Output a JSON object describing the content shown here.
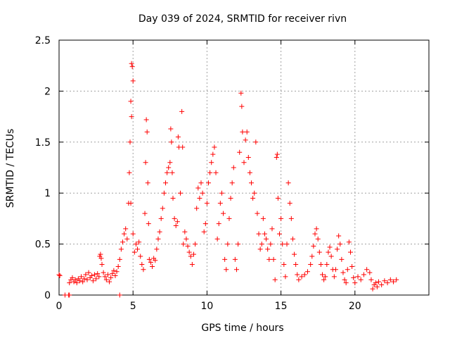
{
  "chart_data": {
    "type": "scatter",
    "title": "Day 039 of 2024, SRMTID for receiver rivn",
    "xlabel": "GPS time / hours",
    "ylabel": "SRMTID / TECUs",
    "xlim": [
      0,
      25
    ],
    "ylim": [
      0,
      2.5
    ],
    "xticks": [
      0,
      5,
      10,
      15,
      20
    ],
    "xtick_labels": [
      "0",
      "5",
      "10",
      "15",
      "20"
    ],
    "yticks": [
      0,
      0.5,
      1,
      1.5,
      2,
      2.5
    ],
    "ytick_labels": [
      "0",
      "0.5",
      "1",
      "1.5",
      "2",
      "2.5"
    ],
    "grid": true,
    "marker": "+",
    "color": "#ff0000",
    "series": [
      {
        "name": "SRMTID",
        "points": [
          [
            0.0,
            0.2
          ],
          [
            0.05,
            0.19
          ],
          [
            0.4,
            0.0
          ],
          [
            0.65,
            0.0
          ],
          [
            0.7,
            0.0
          ],
          [
            0.7,
            0.12
          ],
          [
            0.8,
            0.15
          ],
          [
            0.9,
            0.17
          ],
          [
            1.0,
            0.13
          ],
          [
            1.1,
            0.15
          ],
          [
            1.2,
            0.12
          ],
          [
            1.3,
            0.16
          ],
          [
            1.4,
            0.14
          ],
          [
            1.5,
            0.18
          ],
          [
            1.6,
            0.13
          ],
          [
            1.7,
            0.16
          ],
          [
            1.8,
            0.2
          ],
          [
            1.9,
            0.15
          ],
          [
            2.0,
            0.22
          ],
          [
            2.1,
            0.17
          ],
          [
            2.2,
            0.19
          ],
          [
            2.3,
            0.14
          ],
          [
            2.4,
            0.2
          ],
          [
            2.5,
            0.16
          ],
          [
            2.6,
            0.21
          ],
          [
            2.7,
            0.18
          ],
          [
            2.75,
            0.38
          ],
          [
            2.8,
            0.4
          ],
          [
            2.85,
            0.36
          ],
          [
            2.9,
            0.3
          ],
          [
            3.0,
            0.22
          ],
          [
            3.1,
            0.18
          ],
          [
            3.2,
            0.15
          ],
          [
            3.3,
            0.2
          ],
          [
            3.4,
            0.13
          ],
          [
            3.5,
            0.17
          ],
          [
            3.6,
            0.21
          ],
          [
            3.7,
            0.24
          ],
          [
            3.8,
            0.19
          ],
          [
            3.9,
            0.23
          ],
          [
            4.0,
            0.28
          ],
          [
            4.1,
            0.35
          ],
          [
            4.1,
            0.0
          ],
          [
            4.2,
            0.45
          ],
          [
            4.3,
            0.52
          ],
          [
            4.4,
            0.6
          ],
          [
            4.5,
            0.65
          ],
          [
            4.6,
            0.55
          ],
          [
            4.7,
            0.9
          ],
          [
            4.75,
            1.2
          ],
          [
            4.8,
            1.5
          ],
          [
            4.85,
            1.9
          ],
          [
            4.9,
            2.27
          ],
          [
            4.95,
            2.24
          ],
          [
            5.0,
            2.1
          ],
          [
            4.9,
            1.75
          ],
          [
            4.85,
            0.9
          ],
          [
            5.0,
            0.6
          ],
          [
            5.1,
            0.42
          ],
          [
            5.2,
            0.5
          ],
          [
            5.3,
            0.45
          ],
          [
            5.4,
            0.52
          ],
          [
            5.5,
            0.38
          ],
          [
            5.6,
            0.3
          ],
          [
            5.7,
            0.25
          ],
          [
            5.8,
            0.8
          ],
          [
            5.85,
            1.3
          ],
          [
            5.9,
            1.72
          ],
          [
            5.95,
            1.6
          ],
          [
            6.0,
            1.1
          ],
          [
            6.05,
            0.7
          ],
          [
            6.1,
            0.35
          ],
          [
            6.2,
            0.32
          ],
          [
            6.3,
            0.28
          ],
          [
            6.4,
            0.36
          ],
          [
            6.5,
            0.34
          ],
          [
            6.6,
            0.45
          ],
          [
            6.7,
            0.55
          ],
          [
            6.8,
            0.62
          ],
          [
            6.9,
            0.75
          ],
          [
            7.0,
            0.85
          ],
          [
            7.1,
            1.0
          ],
          [
            7.2,
            1.1
          ],
          [
            7.3,
            1.2
          ],
          [
            7.4,
            1.25
          ],
          [
            7.5,
            1.3
          ],
          [
            7.55,
            1.63
          ],
          [
            7.6,
            1.5
          ],
          [
            7.65,
            1.2
          ],
          [
            7.7,
            0.95
          ],
          [
            7.8,
            0.75
          ],
          [
            7.9,
            0.68
          ],
          [
            8.0,
            0.72
          ],
          [
            8.05,
            1.55
          ],
          [
            8.1,
            1.45
          ],
          [
            8.2,
            1.0
          ],
          [
            8.3,
            1.8
          ],
          [
            8.35,
            1.45
          ],
          [
            8.4,
            0.5
          ],
          [
            8.5,
            0.62
          ],
          [
            8.6,
            0.55
          ],
          [
            8.7,
            0.48
          ],
          [
            8.8,
            0.42
          ],
          [
            8.9,
            0.38
          ],
          [
            9.0,
            0.3
          ],
          [
            9.1,
            0.4
          ],
          [
            9.2,
            0.5
          ],
          [
            9.3,
            0.85
          ],
          [
            9.4,
            1.05
          ],
          [
            9.5,
            0.95
          ],
          [
            9.6,
            1.1
          ],
          [
            9.7,
            1.0
          ],
          [
            9.8,
            0.62
          ],
          [
            9.9,
            0.7
          ],
          [
            10.0,
            0.9
          ],
          [
            10.1,
            1.1
          ],
          [
            10.2,
            1.2
          ],
          [
            10.3,
            1.3
          ],
          [
            10.4,
            1.38
          ],
          [
            10.5,
            1.45
          ],
          [
            10.6,
            1.2
          ],
          [
            10.7,
            0.55
          ],
          [
            10.8,
            0.7
          ],
          [
            10.9,
            0.9
          ],
          [
            11.0,
            1.0
          ],
          [
            11.1,
            0.8
          ],
          [
            11.2,
            0.35
          ],
          [
            11.3,
            0.25
          ],
          [
            11.4,
            0.5
          ],
          [
            11.5,
            0.75
          ],
          [
            11.6,
            0.95
          ],
          [
            11.7,
            1.1
          ],
          [
            11.8,
            1.25
          ],
          [
            11.9,
            0.35
          ],
          [
            12.0,
            0.25
          ],
          [
            12.1,
            0.5
          ],
          [
            12.2,
            1.4
          ],
          [
            12.3,
            1.98
          ],
          [
            12.35,
            1.85
          ],
          [
            12.4,
            1.6
          ],
          [
            12.5,
            1.3
          ],
          [
            12.6,
            1.52
          ],
          [
            12.7,
            1.6
          ],
          [
            12.8,
            1.35
          ],
          [
            12.9,
            1.2
          ],
          [
            13.0,
            1.1
          ],
          [
            13.1,
            0.95
          ],
          [
            13.2,
            1.0
          ],
          [
            13.3,
            1.5
          ],
          [
            13.4,
            0.8
          ],
          [
            13.5,
            0.6
          ],
          [
            13.6,
            0.45
          ],
          [
            13.7,
            0.5
          ],
          [
            13.8,
            0.75
          ],
          [
            13.9,
            0.6
          ],
          [
            14.0,
            0.55
          ],
          [
            14.1,
            0.45
          ],
          [
            14.2,
            0.35
          ],
          [
            14.3,
            0.5
          ],
          [
            14.4,
            0.65
          ],
          [
            14.5,
            0.35
          ],
          [
            14.6,
            0.15
          ],
          [
            14.7,
            1.35
          ],
          [
            14.75,
            1.38
          ],
          [
            14.8,
            0.95
          ],
          [
            14.9,
            0.6
          ],
          [
            15.0,
            0.75
          ],
          [
            15.1,
            0.5
          ],
          [
            15.2,
            0.3
          ],
          [
            15.3,
            0.18
          ],
          [
            15.4,
            0.5
          ],
          [
            15.5,
            1.1
          ],
          [
            15.6,
            0.9
          ],
          [
            15.7,
            0.75
          ],
          [
            15.8,
            0.55
          ],
          [
            15.9,
            0.4
          ],
          [
            16.0,
            0.3
          ],
          [
            16.1,
            0.2
          ],
          [
            16.2,
            0.15
          ],
          [
            16.4,
            0.18
          ],
          [
            16.6,
            0.2
          ],
          [
            16.8,
            0.23
          ],
          [
            17.0,
            0.3
          ],
          [
            17.1,
            0.38
          ],
          [
            17.2,
            0.48
          ],
          [
            17.3,
            0.6
          ],
          [
            17.4,
            0.65
          ],
          [
            17.5,
            0.55
          ],
          [
            17.6,
            0.42
          ],
          [
            17.7,
            0.3
          ],
          [
            17.8,
            0.2
          ],
          [
            17.9,
            0.15
          ],
          [
            18.0,
            0.18
          ],
          [
            18.1,
            0.3
          ],
          [
            18.2,
            0.42
          ],
          [
            18.3,
            0.47
          ],
          [
            18.4,
            0.38
          ],
          [
            18.5,
            0.25
          ],
          [
            18.6,
            0.18
          ],
          [
            18.7,
            0.25
          ],
          [
            18.8,
            0.45
          ],
          [
            18.9,
            0.58
          ],
          [
            19.0,
            0.5
          ],
          [
            19.1,
            0.35
          ],
          [
            19.2,
            0.22
          ],
          [
            19.3,
            0.15
          ],
          [
            19.4,
            0.12
          ],
          [
            19.5,
            0.25
          ],
          [
            19.6,
            0.52
          ],
          [
            19.7,
            0.42
          ],
          [
            19.8,
            0.28
          ],
          [
            19.9,
            0.17
          ],
          [
            20.0,
            0.12
          ],
          [
            20.2,
            0.18
          ],
          [
            20.4,
            0.15
          ],
          [
            20.6,
            0.2
          ],
          [
            20.8,
            0.25
          ],
          [
            21.0,
            0.22
          ],
          [
            21.1,
            0.15
          ],
          [
            21.2,
            0.06
          ],
          [
            21.3,
            0.1
          ],
          [
            21.4,
            0.12
          ],
          [
            21.5,
            0.08
          ],
          [
            21.6,
            0.13
          ],
          [
            21.8,
            0.1
          ],
          [
            22.0,
            0.14
          ],
          [
            22.2,
            0.12
          ],
          [
            22.4,
            0.15
          ],
          [
            22.6,
            0.13
          ],
          [
            22.8,
            0.15
          ]
        ]
      }
    ]
  }
}
